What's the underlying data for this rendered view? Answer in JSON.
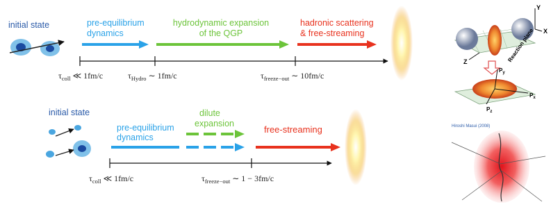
{
  "top": {
    "initial_state": "initial state",
    "pre_equilibrium": [
      "pre-equilibrium",
      "dynamics"
    ],
    "hydro": [
      "hydrodynamic expansion",
      "of the QGP"
    ],
    "hadronic": [
      "hadronic scattering",
      "& free-streaming"
    ],
    "ticks": [
      {
        "symbol": "τ",
        "sub": "coll",
        "rest": "≪ 1fm/c"
      },
      {
        "symbol": "τ",
        "sub": "Hydro",
        "rest": "∼ 1fm/c"
      },
      {
        "symbol": "τ",
        "sub": "freeze−out",
        "rest": "∼ 10fm/c"
      }
    ]
  },
  "bottom": {
    "initial_state": "initial state",
    "pre_equilibrium": [
      "pre-equilibrium",
      "dynamics"
    ],
    "dilute": [
      "dilute",
      "expansion"
    ],
    "free_streaming": "free-streaming",
    "ticks": [
      {
        "symbol": "τ",
        "sub": "coll",
        "rest": "≪ 1fm/c"
      },
      {
        "symbol": "τ",
        "sub": "freeze−out",
        "rest": "∼ 1 − 3fm/c"
      }
    ]
  },
  "side": {
    "reaction_plane": "Reaction plane",
    "credit": "Hiroshi Masui (2008)",
    "axes": [
      "X",
      "Y",
      "Z"
    ],
    "momentum": [
      "P",
      "y",
      "P",
      "x",
      "P",
      "z"
    ]
  }
}
